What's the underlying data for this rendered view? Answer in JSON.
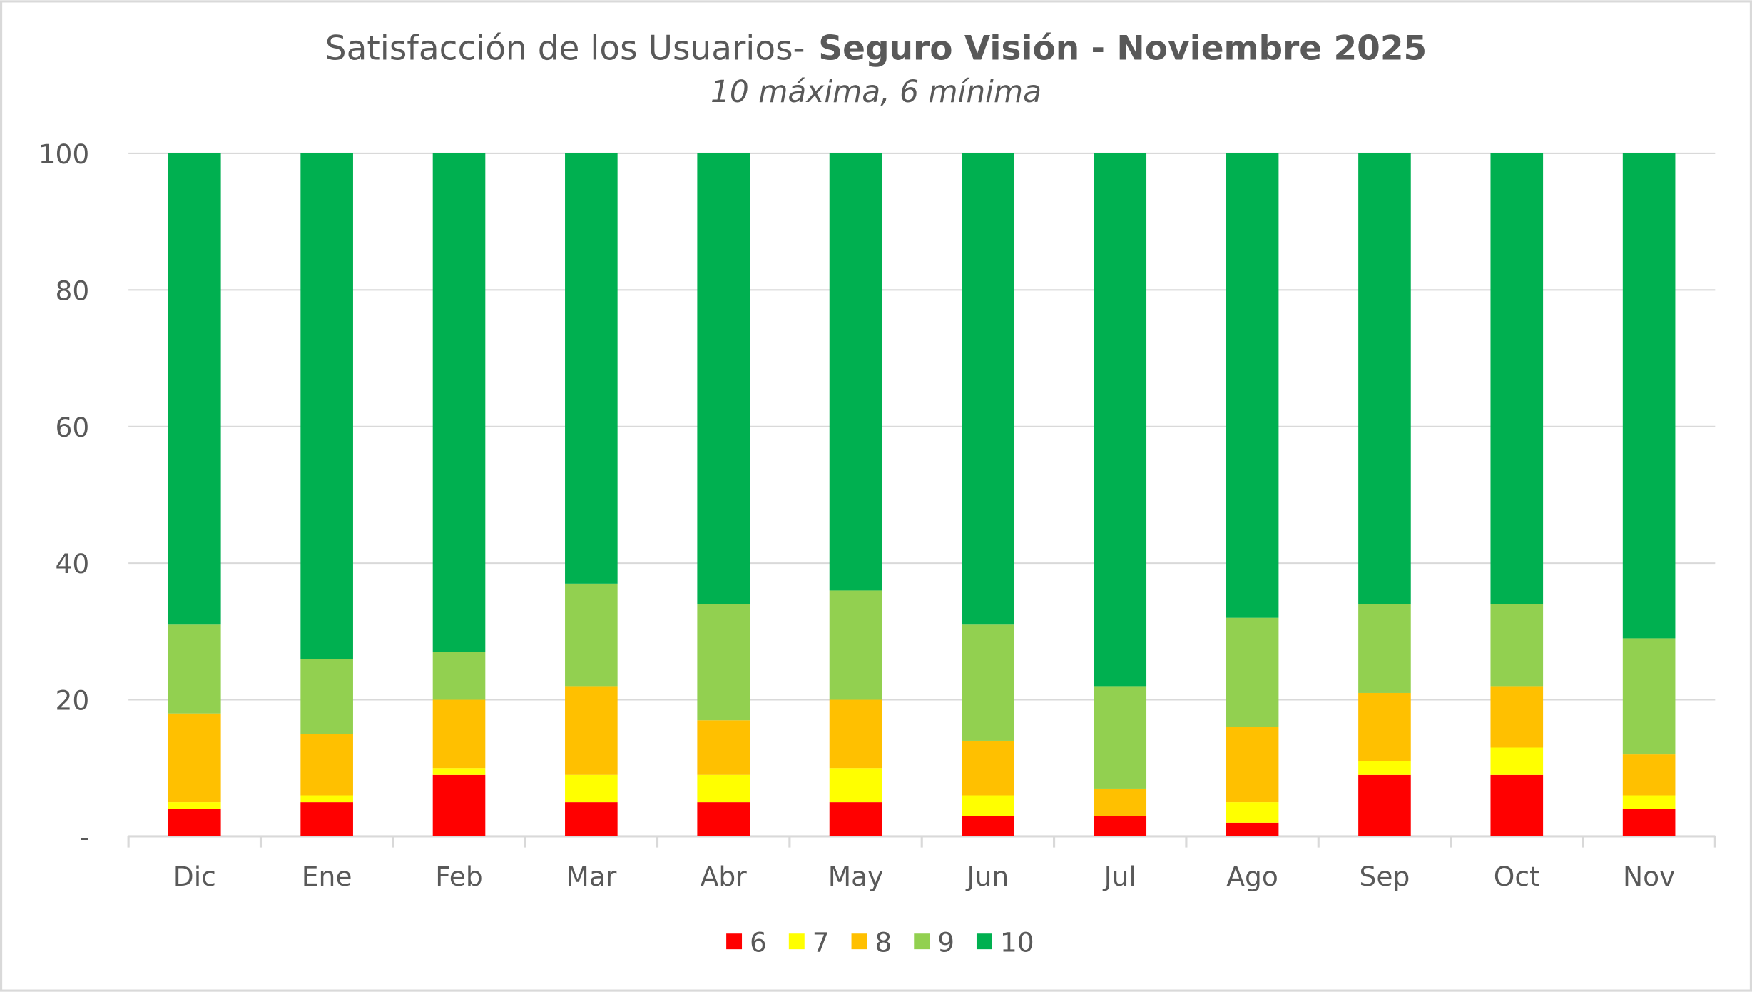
{
  "chart_data": {
    "type": "bar",
    "stacked": true,
    "title": "Satisfacción de los Usuarios-",
    "title_bold": "Seguro Visión - Noviembre 2025",
    "subtitle": "10 máxima, 6 mínima",
    "xlabel": "",
    "ylabel": "",
    "ylim": [
      0,
      100
    ],
    "yticks": [
      "-",
      "20",
      "40",
      "60",
      "80",
      "100"
    ],
    "grid": true,
    "legend_position": "bottom",
    "categories": [
      "Dic",
      "Ene",
      "Feb",
      "Mar",
      "Abr",
      "May",
      "Jun",
      "Jul",
      "Ago",
      "Sep",
      "Oct",
      "Nov"
    ],
    "series": [
      {
        "name": "6",
        "color": "#ff0000",
        "values": [
          4,
          5,
          9,
          5,
          5,
          5,
          3,
          3,
          2,
          9,
          9,
          4
        ]
      },
      {
        "name": "7",
        "color": "#ffff00",
        "values": [
          1,
          1,
          1,
          4,
          4,
          5,
          3,
          0,
          3,
          2,
          4,
          2
        ]
      },
      {
        "name": "8",
        "color": "#ffc000",
        "values": [
          13,
          9,
          10,
          13,
          8,
          10,
          8,
          4,
          11,
          10,
          9,
          6
        ]
      },
      {
        "name": "9",
        "color": "#92d050",
        "values": [
          13,
          11,
          7,
          15,
          17,
          16,
          17,
          15,
          16,
          13,
          12,
          17
        ]
      },
      {
        "name": "10",
        "color": "#00b050",
        "values": [
          69,
          74,
          73,
          63,
          66,
          64,
          69,
          78,
          68,
          66,
          66,
          71
        ]
      }
    ]
  }
}
